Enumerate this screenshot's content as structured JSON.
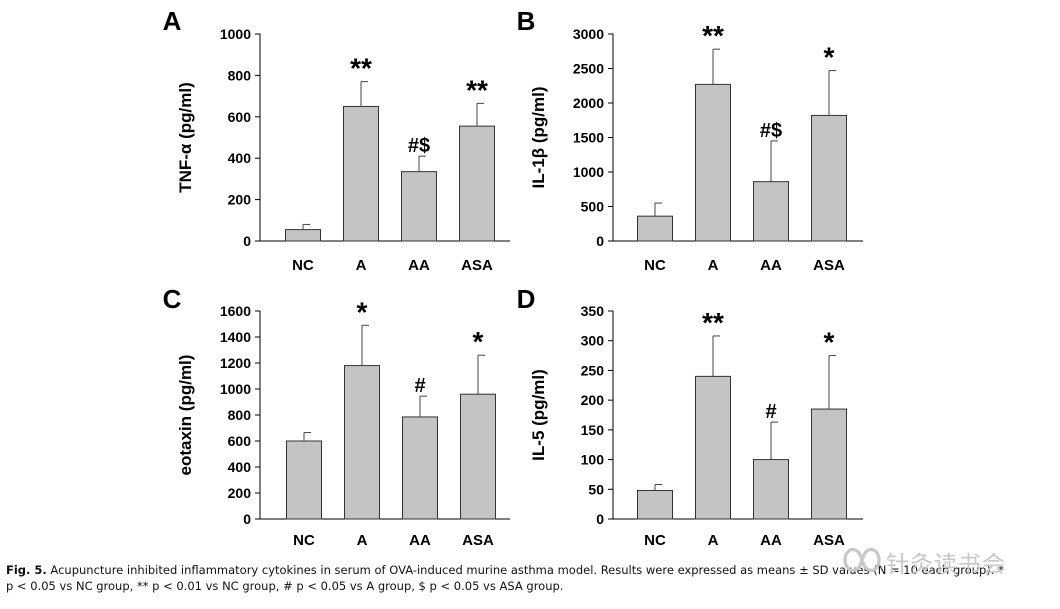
{
  "chart_data": [
    {
      "type": "bar",
      "panel_letter": "A",
      "ylabel": "TNF-α  (pg/ml)",
      "categories": [
        "NC",
        "A",
        "AA",
        "ASA"
      ],
      "values": [
        55,
        650,
        335,
        555
      ],
      "errors": [
        25,
        120,
        75,
        110
      ],
      "annotations": [
        "",
        "**",
        "#$",
        "**"
      ],
      "ylim": [
        0,
        1000
      ],
      "yticks": [
        "0",
        "200",
        "400",
        "600",
        "800",
        "1000"
      ]
    },
    {
      "type": "bar",
      "panel_letter": "B",
      "ylabel": "IL-1β  (pg/ml)",
      "categories": [
        "NC",
        "A",
        "AA",
        "ASA"
      ],
      "values": [
        360,
        2270,
        860,
        1820
      ],
      "errors": [
        190,
        510,
        590,
        650
      ],
      "annotations": [
        "",
        "**",
        "#$",
        "*"
      ],
      "ylim": [
        0,
        3000
      ],
      "yticks": [
        "0",
        "500",
        "1000",
        "1500",
        "2000",
        "2500",
        "3000"
      ]
    },
    {
      "type": "bar",
      "panel_letter": "C",
      "ylabel": "eotaxin (pg/ml)",
      "categories": [
        "NC",
        "A",
        "AA",
        "ASA"
      ],
      "values": [
        600,
        1180,
        785,
        960
      ],
      "errors": [
        65,
        310,
        160,
        300
      ],
      "annotations": [
        "",
        "*",
        "#",
        "*"
      ],
      "ylim": [
        0,
        1600
      ],
      "yticks": [
        "0",
        "200",
        "400",
        "600",
        "800",
        "1000",
        "1200",
        "1400",
        "1600"
      ]
    },
    {
      "type": "bar",
      "panel_letter": "D",
      "ylabel": "IL-5 (pg/ml)",
      "categories": [
        "NC",
        "A",
        "AA",
        "ASA"
      ],
      "values": [
        48,
        240,
        100,
        185
      ],
      "errors": [
        10,
        68,
        63,
        90
      ],
      "annotations": [
        "",
        "**",
        "#",
        "*"
      ],
      "ylim": [
        0,
        350
      ],
      "yticks": [
        "0",
        "50",
        "100",
        "150",
        "200",
        "250",
        "300",
        "350"
      ]
    }
  ],
  "caption": {
    "label": "Fig. 5.",
    "line1": " Acupuncture inhibited inflammatory cytokines in serum of OVA-induced murine asthma model. Results were expressed as means ± SD values (N = 10 each group). *",
    "line2": "p < 0.05 vs NC group, ** p < 0.01 vs NC group, # p < 0.05 vs A group, $ p < 0.05 vs ASA group."
  },
  "watermark": {
    "text": "针灸读书会",
    "icon": "wechat-channel-icon"
  }
}
